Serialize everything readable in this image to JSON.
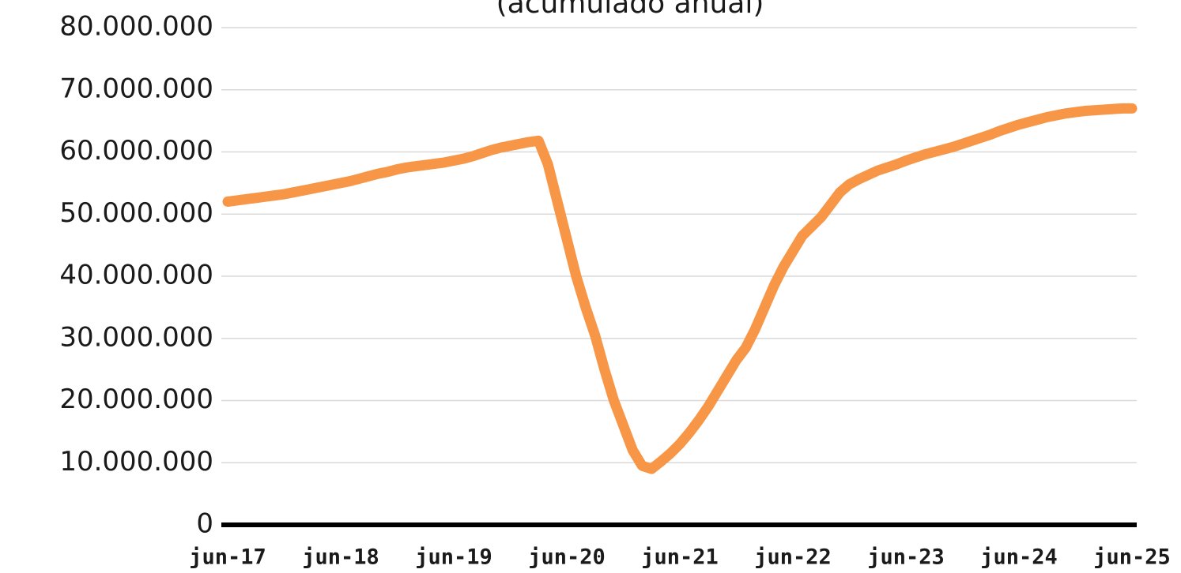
{
  "chart_data": {
    "type": "line",
    "title": "(acumulado anual)",
    "categories": [
      "jun-17",
      null,
      null,
      null,
      null,
      null,
      null,
      null,
      null,
      null,
      null,
      null,
      "jun-18",
      null,
      null,
      null,
      null,
      null,
      null,
      null,
      null,
      null,
      null,
      null,
      "jun-19",
      null,
      null,
      null,
      null,
      null,
      null,
      null,
      null,
      null,
      null,
      null,
      "jun-20",
      null,
      null,
      null,
      null,
      null,
      null,
      null,
      null,
      null,
      null,
      null,
      "jun-21",
      null,
      null,
      null,
      null,
      null,
      null,
      null,
      null,
      null,
      null,
      null,
      "jun-22",
      null,
      null,
      null,
      null,
      null,
      null,
      null,
      null,
      null,
      null,
      null,
      "jun-23",
      null,
      null,
      null,
      null,
      null,
      null,
      null,
      null,
      null,
      null,
      null,
      "jun-24",
      null,
      null,
      null,
      null,
      null,
      null,
      null,
      null,
      null,
      null,
      null,
      "jun-25"
    ],
    "series": [
      {
        "color": "#f79646",
        "values": [
          52000000,
          52200000,
          52400000,
          52600000,
          52800000,
          53000000,
          53200000,
          53500000,
          53800000,
          54100000,
          54400000,
          54700000,
          55000000,
          55300000,
          55700000,
          56100000,
          56500000,
          56800000,
          57200000,
          57500000,
          57700000,
          57900000,
          58100000,
          58300000,
          58600000,
          58900000,
          59300000,
          59800000,
          60300000,
          60700000,
          61000000,
          61300000,
          61600000,
          61800000,
          58000000,
          52000000,
          46000000,
          40000000,
          35000000,
          30500000,
          25000000,
          20000000,
          16000000,
          12000000,
          9500000,
          9000000,
          10200000,
          11500000,
          13000000,
          14800000,
          16800000,
          19000000,
          21500000,
          24000000,
          26500000,
          28500000,
          31500000,
          35000000,
          38500000,
          41500000,
          44000000,
          46500000,
          48000000,
          49500000,
          51500000,
          53500000,
          54800000,
          55600000,
          56300000,
          57000000,
          57500000,
          58000000,
          58600000,
          59100000,
          59600000,
          60000000,
          60400000,
          60800000,
          61300000,
          61800000,
          62300000,
          62800000,
          63400000,
          63900000,
          64400000,
          64800000,
          65200000,
          65600000,
          65900000,
          66200000,
          66400000,
          66600000,
          66700000,
          66800000,
          66900000,
          67000000,
          67000000
        ]
      }
    ],
    "ylim": [
      0,
      80000000
    ],
    "yticks": [
      0,
      {
        "value": 10000000,
        "label": "10.000.000"
      },
      {
        "value": 20000000,
        "label": "20.000.000"
      },
      {
        "value": 30000000,
        "label": "30.000.000"
      },
      {
        "value": 40000000,
        "label": "40.000.000"
      },
      {
        "value": 50000000,
        "label": "50.000.000"
      },
      {
        "value": 60000000,
        "label": "60.000.000"
      },
      {
        "value": 70000000,
        "label": "70.000.000"
      },
      {
        "value": 80000000,
        "label": "80.000.000"
      }
    ],
    "grid": true
  }
}
